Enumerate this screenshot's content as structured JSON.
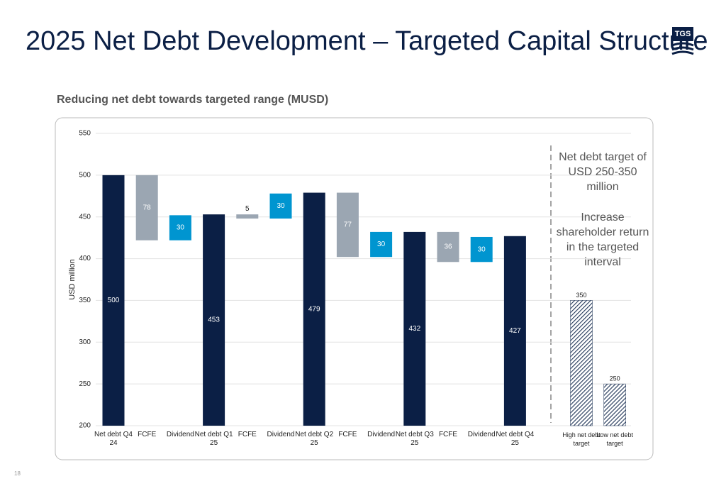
{
  "header": {
    "title": "2025 Net Debt Development – Targeted Capital Structure",
    "logo": "TGS"
  },
  "chart_data": {
    "type": "waterfall",
    "title": "Reducing net debt towards targeted range (MUSD)",
    "ylabel": "USD million",
    "categories": [
      "Net debt Q4 24",
      "FCFE",
      "Dividend",
      "Net debt Q1 25",
      "FCFE",
      "Dividend",
      "Net debt Q2 25",
      "FCFE",
      "Dividend",
      "Net debt Q3 25",
      "FCFE",
      "Dividend",
      "Net debt Q4 25"
    ],
    "values": [
      500,
      78,
      30,
      453,
      5,
      30,
      479,
      77,
      30,
      432,
      36,
      30,
      427
    ],
    "steps": [
      "total",
      "decrease",
      "increase",
      "total",
      "decrease",
      "increase",
      "total",
      "decrease",
      "increase",
      "total",
      "decrease",
      "increase",
      "total"
    ],
    "colors": {
      "total": "#0b1f45",
      "decrease": "#9ba6b2",
      "increase": "#0095d0"
    },
    "target_categories": [
      "High net debt target",
      "Low net debt target"
    ],
    "target_values": [
      350,
      250
    ],
    "target_color": "#1f3456",
    "annotations": [
      "Net debt target of USD 250-350 million",
      "Increase shareholder return in the targeted interval"
    ],
    "ylim": [
      200,
      550
    ],
    "yticks": [
      200,
      250,
      300,
      350,
      400,
      450,
      500,
      550
    ],
    "grid": true
  },
  "footer": {
    "page": "18"
  }
}
